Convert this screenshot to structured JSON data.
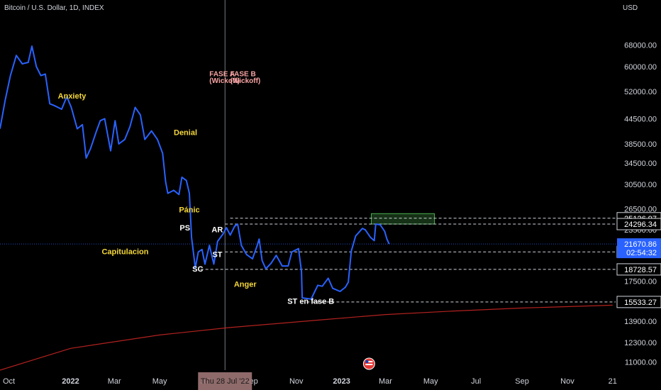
{
  "header": {
    "ticker": "Bitcoin / U.S. Dollar, 1D, INDEX",
    "currency": "USD"
  },
  "chart_data": {
    "type": "line",
    "title": "Bitcoin / U.S. Dollar, 1D, INDEX",
    "scale": "log",
    "series": [
      {
        "color": "#2962ff",
        "points": [
          [
            "2021-09-28",
            42000
          ],
          [
            "2021-10-05",
            49500
          ],
          [
            "2021-10-12",
            57000
          ],
          [
            "2021-10-20",
            64000
          ],
          [
            "2021-10-28",
            61000
          ],
          [
            "2021-11-05",
            61500
          ],
          [
            "2021-11-10",
            67500
          ],
          [
            "2021-11-16",
            60000
          ],
          [
            "2021-11-22",
            57000
          ],
          [
            "2021-11-28",
            57500
          ],
          [
            "2021-12-04",
            48500
          ],
          [
            "2021-12-10",
            48000
          ],
          [
            "2021-12-20",
            47000
          ],
          [
            "2021-12-27",
            50500
          ],
          [
            "2022-01-02",
            47500
          ],
          [
            "2022-01-10",
            42000
          ],
          [
            "2022-01-17",
            43000
          ],
          [
            "2022-01-22",
            35500
          ],
          [
            "2022-01-28",
            37500
          ],
          [
            "2022-02-05",
            41500
          ],
          [
            "2022-02-10",
            44000
          ],
          [
            "2022-02-16",
            44500
          ],
          [
            "2022-02-24",
            37000
          ],
          [
            "2022-03-02",
            44000
          ],
          [
            "2022-03-07",
            38500
          ],
          [
            "2022-03-15",
            39500
          ],
          [
            "2022-03-22",
            42500
          ],
          [
            "2022-03-29",
            47500
          ],
          [
            "2022-04-05",
            45500
          ],
          [
            "2022-04-11",
            39500
          ],
          [
            "2022-04-20",
            41500
          ],
          [
            "2022-04-28",
            39500
          ],
          [
            "2022-05-05",
            36500
          ],
          [
            "2022-05-09",
            31000
          ],
          [
            "2022-05-12",
            29000
          ],
          [
            "2022-05-20",
            29500
          ],
          [
            "2022-05-27",
            28800
          ],
          [
            "2022-05-31",
            31800
          ],
          [
            "2022-06-06",
            31200
          ],
          [
            "2022-06-10",
            29000
          ],
          [
            "2022-06-13",
            22500
          ],
          [
            "2022-06-18",
            18900
          ],
          [
            "2022-06-22",
            20700
          ],
          [
            "2022-06-27",
            21000
          ],
          [
            "2022-07-01",
            19300
          ],
          [
            "2022-07-07",
            21500
          ],
          [
            "2022-07-13",
            19300
          ],
          [
            "2022-07-18",
            22000
          ],
          [
            "2022-07-25",
            22900
          ],
          [
            "2022-07-30",
            23800
          ],
          [
            "2022-08-04",
            22800
          ],
          [
            "2022-08-10",
            24000
          ],
          [
            "2022-08-14",
            24300
          ],
          [
            "2022-08-19",
            21500
          ],
          [
            "2022-08-26",
            20400
          ],
          [
            "2022-09-03",
            19900
          ],
          [
            "2022-09-09",
            21400
          ],
          [
            "2022-09-12",
            22300
          ],
          [
            "2022-09-16",
            19700
          ],
          [
            "2022-09-21",
            18800
          ],
          [
            "2022-09-28",
            19400
          ],
          [
            "2022-10-05",
            20300
          ],
          [
            "2022-10-13",
            19100
          ],
          [
            "2022-10-21",
            19100
          ],
          [
            "2022-10-26",
            20700
          ],
          [
            "2022-11-04",
            21100
          ],
          [
            "2022-11-08",
            18500
          ],
          [
            "2022-11-09",
            15900
          ],
          [
            "2022-11-21",
            15800
          ],
          [
            "2022-11-30",
            17100
          ],
          [
            "2022-12-06",
            17000
          ],
          [
            "2022-12-14",
            17800
          ],
          [
            "2022-12-20",
            16800
          ],
          [
            "2022-12-30",
            16500
          ],
          [
            "2023-01-06",
            16900
          ],
          [
            "2023-01-10",
            17400
          ],
          [
            "2023-01-14",
            20800
          ],
          [
            "2023-01-20",
            22700
          ],
          [
            "2023-01-29",
            23700
          ],
          [
            "2023-02-02",
            23500
          ],
          [
            "2023-02-09",
            22500
          ],
          [
            "2023-02-14",
            22100
          ],
          [
            "2023-02-16",
            24300
          ],
          [
            "2023-02-22",
            24200
          ],
          [
            "2023-02-28",
            23300
          ],
          [
            "2023-03-03",
            22300
          ],
          [
            "2023-03-06",
            21670.86
          ]
        ]
      },
      {
        "color": "#b2221f",
        "points": [
          [
            "2021-09-28",
            10500
          ],
          [
            "2022-01-01",
            11900
          ],
          [
            "2022-05-01",
            12850
          ],
          [
            "2022-08-01",
            13400
          ],
          [
            "2022-12-01",
            14000
          ],
          [
            "2023-03-01",
            14450
          ],
          [
            "2023-06-01",
            14750
          ],
          [
            "2023-09-01",
            15000
          ],
          [
            "2024-01-01",
            15250
          ]
        ]
      }
    ],
    "x_axis": {
      "range": [
        "2021-09-28",
        "2024-01-05"
      ],
      "ticks": [
        {
          "label": "Oct",
          "date": "2021-10-01"
        },
        {
          "label": "2022",
          "date": "2022-01-01",
          "bold": true
        },
        {
          "label": "Mar",
          "date": "2022-03-01"
        },
        {
          "label": "May",
          "date": "2022-05-01"
        },
        {
          "label": "Jul",
          "date": "2022-07-01"
        },
        {
          "label": "Sep",
          "date": "2022-09-01"
        },
        {
          "label": "Nov",
          "date": "2022-11-01"
        },
        {
          "label": "2023",
          "date": "2023-01-01",
          "bold": true
        },
        {
          "label": "Mar",
          "date": "2023-03-01"
        },
        {
          "label": "May",
          "date": "2023-05-01"
        },
        {
          "label": "Jul",
          "date": "2023-07-01"
        },
        {
          "label": "Sep",
          "date": "2023-09-01"
        },
        {
          "label": "Nov",
          "date": "2023-11-01"
        },
        {
          "label": "21",
          "date": "2024-01-01"
        }
      ],
      "cursor_date": "2022-07-28",
      "cursor_label": "Thu 28 Jul '22"
    },
    "y_axis": {
      "ylim": [
        10500,
        88000
      ],
      "ticks": [
        68000,
        60000,
        52000,
        44500,
        38500,
        34500,
        30500,
        26500,
        23500,
        17500,
        13900,
        12300,
        11000
      ],
      "tick_labels": [
        "68000.00",
        "60000.00",
        "52000.00",
        "44500.00",
        "38500.00",
        "34500.00",
        "30500.00",
        "26500.00",
        "23500.00",
        "17500.00",
        "13900.00",
        "12300.00",
        "11000.00"
      ]
    },
    "levels": [
      {
        "value": 25126.97,
        "label": "25126.97",
        "start": "2022-08-04",
        "style": "box"
      },
      {
        "value": 24296.34,
        "label": "24296.34",
        "start": "2022-07-28",
        "style": "box"
      },
      {
        "value": 20712.75,
        "label": "20712.75",
        "start": "2022-07-28",
        "style": "box"
      },
      {
        "value": 18728.57,
        "label": "18728.57",
        "start": "2022-06-25",
        "style": "box"
      },
      {
        "value": 15533.27,
        "label": "15533.27",
        "start": "2022-11-15",
        "style": "box"
      }
    ],
    "current_price": {
      "value": 21670.86,
      "label": "21670.86",
      "countdown": "02:54:32",
      "color": "#2962ff"
    },
    "zone": {
      "from": "2023-02-10",
      "to": "2023-05-06",
      "low": 24300,
      "high": 25800
    },
    "annotations": [
      {
        "text": "Anxiety",
        "date": "2021-12-15",
        "value": 50000,
        "color": "#f5d83b"
      },
      {
        "text": "Denial",
        "date": "2022-05-20",
        "value": 40500,
        "color": "#f5d83b"
      },
      {
        "text": "Pánic",
        "date": "2022-05-27",
        "value": 26000,
        "color": "#f5d83b"
      },
      {
        "text": "PS",
        "date": "2022-05-28",
        "value": 23400,
        "color": "#ffffff"
      },
      {
        "text": "Capitulacion",
        "date": "2022-02-12",
        "value": 20450,
        "color": "#f5d83b"
      },
      {
        "text": "AR",
        "date": "2022-07-10",
        "value": 23200,
        "color": "#ffffff"
      },
      {
        "text": "ST",
        "date": "2022-07-11",
        "value": 20100,
        "color": "#ffffff"
      },
      {
        "text": "SC",
        "date": "2022-06-14",
        "value": 18500,
        "color": "#ffffff"
      },
      {
        "text": "Anger",
        "date": "2022-08-09",
        "value": 16950,
        "color": "#f5d83b"
      },
      {
        "text": "ST en fase B",
        "date": "2022-10-20",
        "value": 15370,
        "color": "#ffffff"
      },
      {
        "text": "FASE A",
        "date": "2022-07-07",
        "value": 56800,
        "color": "#f7a3a3"
      },
      {
        "text": "(Wickoff)",
        "date": "2022-07-07",
        "value": 54600,
        "color": "#f7a3a3"
      },
      {
        "text": "FASE B",
        "date": "2022-08-04",
        "value": 56800,
        "color": "#f7a3a3"
      },
      {
        "text": "(Wickoff)",
        "date": "2022-08-04",
        "value": 54600,
        "color": "#f7a3a3"
      }
    ]
  }
}
